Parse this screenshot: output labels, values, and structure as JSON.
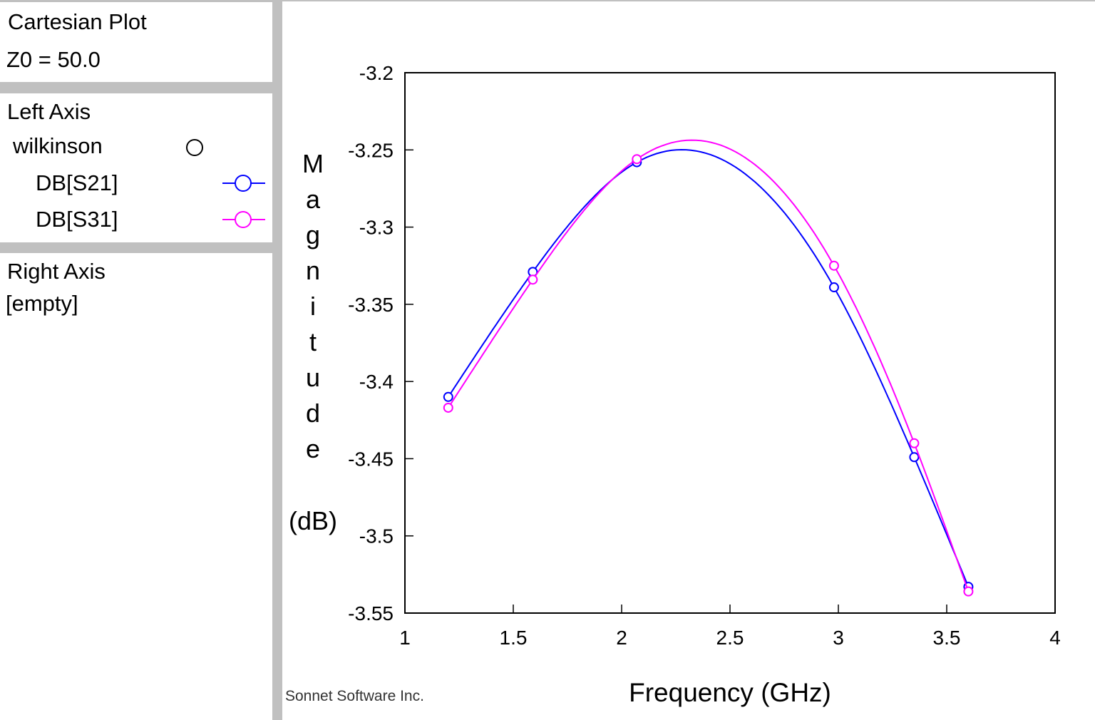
{
  "panel": {
    "title": "Cartesian Plot",
    "z0": "Z0 = 50.0",
    "left_axis_label": "Left Axis",
    "project": "wilkinson",
    "right_axis_label": "Right Axis",
    "right_axis_value": "[empty]"
  },
  "footer": {
    "vendor": "Sonnet Software Inc."
  },
  "chart_data": {
    "type": "line",
    "title": "",
    "xlabel": "Frequency (GHz)",
    "ylabel_vertical": [
      "M",
      "a",
      "g",
      "n",
      "i",
      "t",
      "u",
      "d",
      "e"
    ],
    "ylabel_unit": "(dB)",
    "xlim": [
      1,
      4
    ],
    "ylim": [
      -3.55,
      -3.2
    ],
    "xticks": [
      1,
      1.5,
      2,
      2.5,
      3,
      3.5,
      4
    ],
    "xtick_labels": [
      "1",
      "1.5",
      "2",
      "2.5",
      "3",
      "3.5",
      "4"
    ],
    "yticks": [
      -3.2,
      -3.25,
      -3.3,
      -3.35,
      -3.4,
      -3.45,
      -3.5,
      -3.55
    ],
    "ytick_labels": [
      "-3.2",
      "-3.25",
      "-3.3",
      "-3.35",
      "-3.4",
      "-3.45",
      "-3.5",
      "-3.55"
    ],
    "grid": false,
    "legend_position": "left-panel",
    "series": [
      {
        "name": "DB[S21]",
        "color": "#0000ff",
        "marker": "circle",
        "x": [
          1.2,
          1.59,
          2.07,
          2.98,
          3.35,
          3.6
        ],
        "y": [
          -3.41,
          -3.329,
          -3.258,
          -3.339,
          -3.449,
          -3.533
        ]
      },
      {
        "name": "DB[S31]",
        "color": "#ff00ff",
        "marker": "circle",
        "x": [
          1.2,
          1.59,
          2.07,
          2.98,
          3.35,
          3.6
        ],
        "y": [
          -3.417,
          -3.334,
          -3.256,
          -3.325,
          -3.44,
          -3.536
        ]
      }
    ]
  }
}
